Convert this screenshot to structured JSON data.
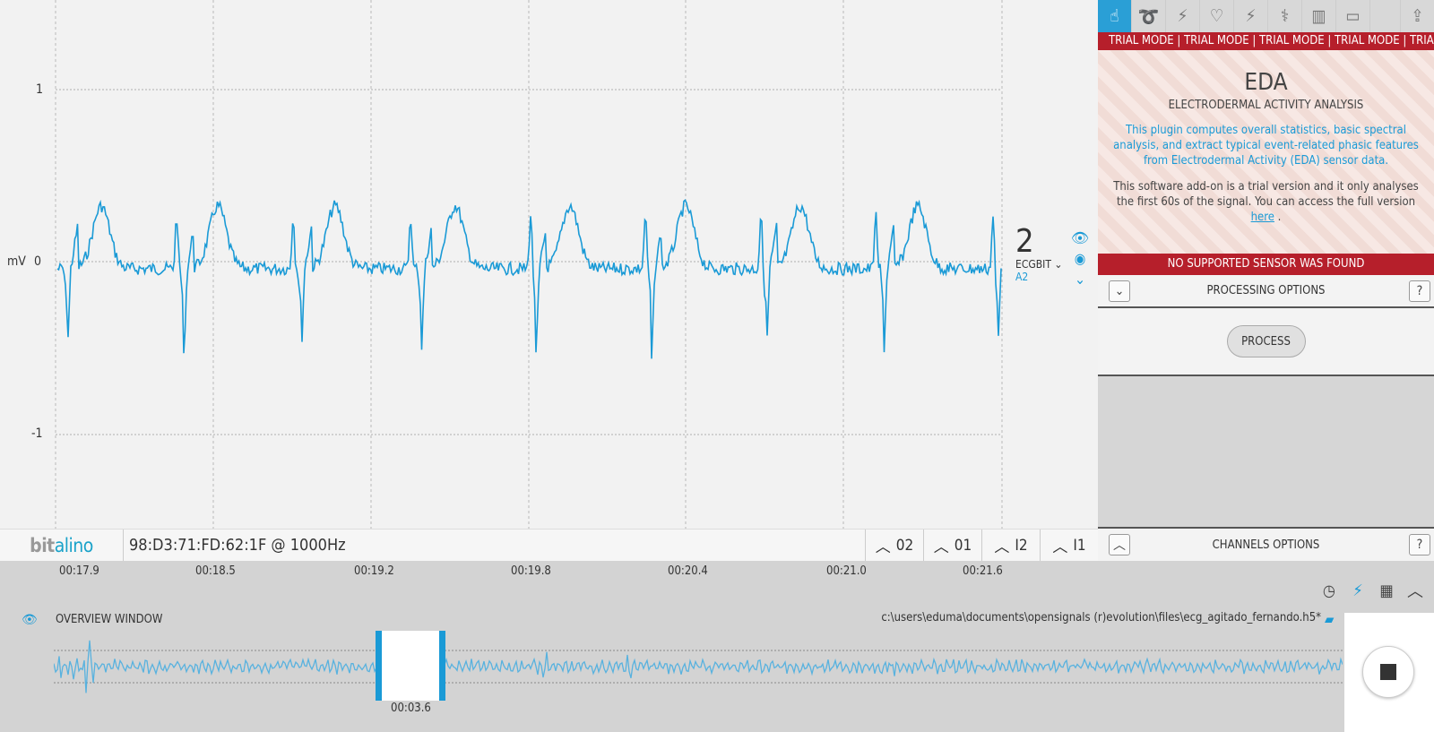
{
  "plot": {
    "y_unit": "mV",
    "y_ticks": [
      "1",
      "0",
      "-1"
    ],
    "channel": {
      "number": "2",
      "name": "ECGBIT",
      "port": "A2"
    }
  },
  "status_bar": {
    "logo_bit": "bit",
    "logo_alino": "alino",
    "device": "98:D3:71:FD:62:1F @ 1000Hz",
    "modes": [
      "02",
      "01",
      "I2",
      "I1"
    ]
  },
  "time_axis": {
    "ticks": [
      "00:17.9",
      "00:18.5",
      "00:19.2",
      "00:19.8",
      "00:20.4",
      "00:21.0",
      "00:21.6"
    ]
  },
  "overview": {
    "label": "OVERVIEW WINDOW",
    "file_path": "c:\\users\\eduma\\documents\\opensignals (r)evolution\\files\\ecg_agitado_fernando.h5*",
    "selection_time": "00:03.6"
  },
  "plugin": {
    "trial_banner": "TRIAL MODE | TRIAL MODE | TRIAL MODE | TRIAL MODE | TRIAL MODE | TRIAL",
    "title": "EDA",
    "subtitle": "ELECTRODERMAL ACTIVITY ANALYSIS",
    "description": "This plugin computes overall statistics, basic spectral analysis, and extract typical event-related phasic features from Electrodermal Activity (EDA) sensor data.",
    "trial_note": "This software add-on is a trial version and it only analyses the first 60s of the signal. You can access the full version",
    "trial_link": "here",
    "trial_end": ".",
    "no_sensor": "NO SUPPORTED SENSOR WAS FOUND",
    "processing_options": "PROCESSING OPTIONS",
    "process_button": "PROCESS",
    "channels_options": "CHANNELS OPTIONS",
    "help": "?"
  },
  "colors": {
    "accent": "#1a9ad6",
    "trial_red": "#b61f2b",
    "signal": "#1a9ad6"
  }
}
